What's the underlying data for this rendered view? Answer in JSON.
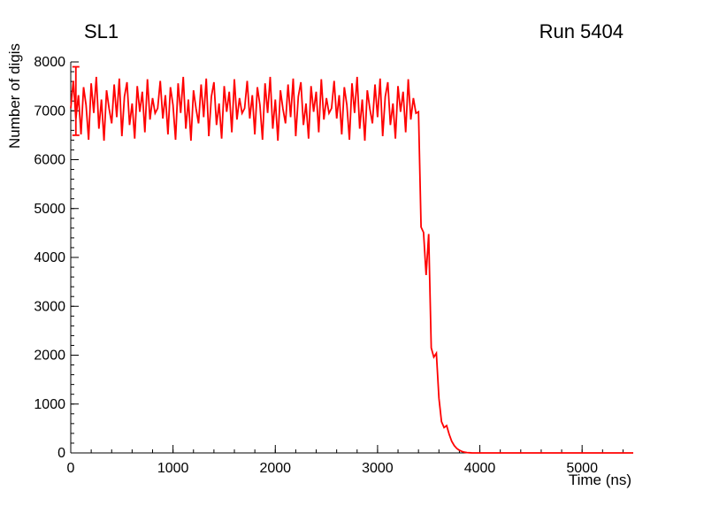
{
  "chart_data": {
    "type": "line",
    "title": "SL1",
    "annotation": "Run 5404",
    "xlabel": "Time (ns)",
    "ylabel": "Number of digis",
    "xlim": [
      0,
      5500
    ],
    "ylim": [
      0,
      8000
    ],
    "x_major_ticks": [
      0,
      1000,
      2000,
      3000,
      4000,
      5000
    ],
    "y_major_ticks": [
      0,
      1000,
      2000,
      3000,
      4000,
      5000,
      6000,
      7000,
      8000
    ],
    "x_minor_step": 200,
    "y_minor_step": 200,
    "line_color": "#ff0000",
    "axis_color": "#000000",
    "background": "#ffffff",
    "error_bar": {
      "x": 50,
      "y_low": 6500,
      "y_high": 7900
    },
    "x0": 0,
    "dx": 25,
    "values": [
      7052,
      7613,
      6842,
      7320,
      6517,
      7485,
      7118,
      6409,
      7562,
      6955,
      7694,
      6633,
      7231,
      6388,
      7419,
      7040,
      6742,
      7538,
      6870,
      7660,
      6480,
      7290,
      7585,
      6710,
      7150,
      6430,
      7505,
      6980,
      7390,
      6560,
      7645,
      6820,
      7260,
      6950,
      7052,
      7613,
      6842,
      7320,
      6517,
      7485,
      7118,
      6409,
      7562,
      6955,
      7694,
      6633,
      7231,
      6388,
      7419,
      7040,
      6742,
      7538,
      6870,
      7660,
      6480,
      7290,
      7585,
      6710,
      7150,
      6430,
      7505,
      6980,
      7390,
      6560,
      7645,
      6820,
      7260,
      6950,
      7052,
      7613,
      6842,
      7320,
      6517,
      7485,
      7118,
      6409,
      7562,
      6955,
      7694,
      6633,
      7231,
      6388,
      7419,
      7040,
      6742,
      7538,
      6870,
      7660,
      6480,
      7290,
      7585,
      6710,
      7150,
      6430,
      7505,
      6980,
      7390,
      6560,
      7645,
      6820,
      7260,
      6950,
      7052,
      7613,
      6842,
      7320,
      6517,
      7485,
      7118,
      6409,
      7562,
      6955,
      7694,
      6633,
      7231,
      6388,
      7419,
      7040,
      6742,
      7538,
      6870,
      7660,
      6480,
      7290,
      7585,
      6710,
      7150,
      6430,
      7505,
      6980,
      7390,
      6560,
      7645,
      6820,
      7260,
      6950,
      6980,
      4620,
      4510,
      3640,
      4480,
      2150,
      1960,
      2040,
      1120,
      640,
      520,
      560,
      380,
      240,
      150,
      90,
      55,
      30,
      15,
      8,
      3,
      0,
      0,
      0,
      0,
      0,
      0,
      0,
      0,
      0,
      0,
      0,
      0,
      0,
      0,
      0,
      0,
      0,
      0,
      0,
      0,
      0,
      0,
      0,
      0,
      0,
      0,
      0,
      0,
      0,
      0,
      0,
      0,
      0,
      0,
      0,
      0,
      0,
      0,
      0,
      0,
      0,
      0,
      0,
      0,
      0,
      0,
      0,
      0,
      0,
      0,
      0,
      0,
      0,
      0,
      0,
      0,
      0,
      0,
      0,
      0,
      0,
      0,
      0,
      0
    ]
  }
}
